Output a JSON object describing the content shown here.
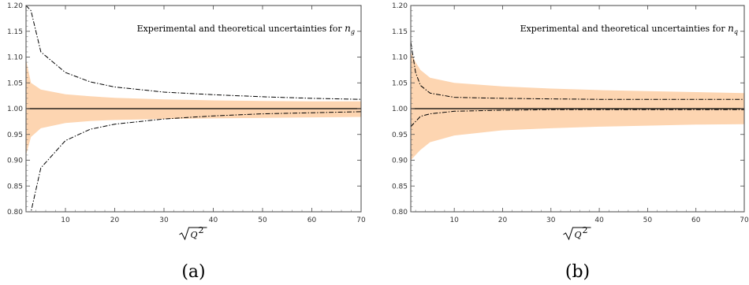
{
  "chart_data": [
    {
      "type": "area",
      "panel_caption": "(a)",
      "title_prefix": "Experimental and theoretical uncertainties for ",
      "title_symbol": "n",
      "title_subscript": "g",
      "xlabel_radicand": "Q",
      "xlabel_power": "2",
      "xlim": [
        2,
        70
      ],
      "ylim": [
        0.8,
        1.2
      ],
      "x_ticks": [
        10,
        20,
        30,
        40,
        50,
        60,
        70
      ],
      "y_ticks": [
        "0.80",
        "0.85",
        "0.90",
        "0.95",
        "1.00",
        "1.05",
        "1.10",
        "1.15",
        "1.20"
      ],
      "colors": {
        "band": "#fdd5b1",
        "line": "#000000"
      },
      "reference_line": 1.0,
      "x": [
        2,
        3,
        5,
        10,
        15,
        20,
        30,
        40,
        50,
        60,
        70
      ],
      "series": [
        {
          "name": "",
          "kind": "band_upper",
          "values": [
            1.095,
            1.05,
            1.037,
            1.028,
            1.024,
            1.021,
            1.018,
            1.016,
            1.015,
            1.014,
            1.014
          ]
        },
        {
          "name": "",
          "kind": "band_lower",
          "values": [
            0.91,
            0.945,
            0.962,
            0.972,
            0.976,
            0.978,
            0.98,
            0.981,
            0.982,
            0.983,
            0.984
          ]
        },
        {
          "name": "",
          "kind": "dashdot",
          "values": [
            1.2,
            1.19,
            1.11,
            1.07,
            1.052,
            1.042,
            1.032,
            1.027,
            1.023,
            1.02,
            1.018
          ]
        },
        {
          "name": "",
          "kind": "dashdot",
          "values": [
            0.8,
            0.8,
            0.885,
            0.938,
            0.96,
            0.97,
            0.98,
            0.986,
            0.99,
            0.992,
            0.994
          ]
        }
      ]
    },
    {
      "type": "area",
      "panel_caption": "(b)",
      "title_prefix": "Experimental and theoretical uncertainties for ",
      "title_symbol": "n",
      "title_subscript": "q",
      "xlabel_radicand": "Q",
      "xlabel_power": "2",
      "xlim": [
        1,
        70
      ],
      "ylim": [
        0.8,
        1.2
      ],
      "x_ticks": [
        10,
        20,
        30,
        40,
        50,
        60,
        70
      ],
      "y_ticks": [
        "0.80",
        "0.85",
        "0.90",
        "0.95",
        "1.00",
        "1.05",
        "1.10",
        "1.15",
        "1.20"
      ],
      "colors": {
        "band": "#fdd5b1",
        "line": "#000000"
      },
      "reference_line": 1.0,
      "x": [
        1,
        2,
        3,
        5,
        10,
        20,
        30,
        40,
        50,
        60,
        70
      ],
      "series": [
        {
          "name": "",
          "kind": "band_upper",
          "values": [
            1.11,
            1.09,
            1.075,
            1.06,
            1.05,
            1.043,
            1.039,
            1.036,
            1.034,
            1.032,
            1.03
          ]
        },
        {
          "name": "",
          "kind": "band_lower",
          "values": [
            0.9,
            0.91,
            0.92,
            0.935,
            0.948,
            0.958,
            0.962,
            0.965,
            0.967,
            0.969,
            0.97
          ]
        },
        {
          "name": "",
          "kind": "dashdot",
          "values": [
            1.13,
            1.07,
            1.045,
            1.03,
            1.022,
            1.02,
            1.019,
            1.018,
            1.018,
            1.018,
            1.018
          ]
        },
        {
          "name": "",
          "kind": "dashdot",
          "values": [
            0.965,
            0.975,
            0.985,
            0.99,
            0.995,
            0.997,
            0.998,
            0.998,
            0.998,
            0.998,
            0.998
          ]
        }
      ]
    }
  ]
}
